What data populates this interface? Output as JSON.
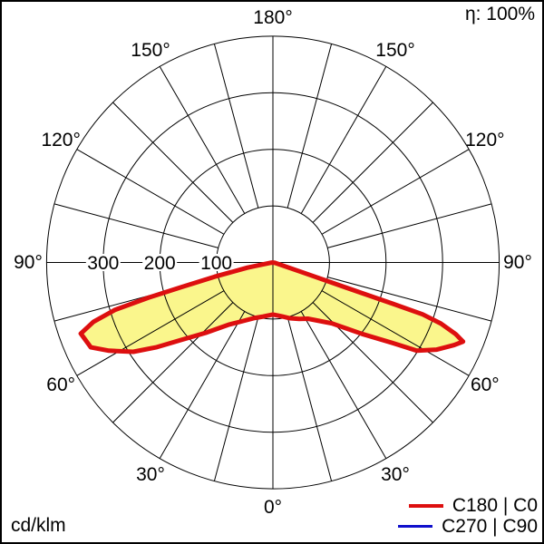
{
  "frame": {
    "eta_label": "η: 100%",
    "unit_label": "cd/klm"
  },
  "legend": {
    "entries": [
      {
        "label": "C180 | C0",
        "color": "#dd0f0f",
        "thickness": 4
      },
      {
        "label": "C270 | C90",
        "color": "#1010cc",
        "thickness": 3
      }
    ]
  },
  "chart_data": {
    "type": "polar",
    "subtype": "luminaire-light-distribution-curve",
    "units": "cd/klm",
    "efficiency": "η: 100%",
    "angle_zero_direction": "down (nadir), angles increase toward horizontal 90° and zenith 180°",
    "angle_tick_step_deg": 15,
    "angle_labels": [
      0,
      30,
      60,
      90,
      120,
      150,
      180
    ],
    "rings": [
      100,
      200,
      300,
      400
    ],
    "ring_axis_labels": [
      100,
      200,
      300
    ],
    "max_value": 400,
    "grid_color": "#000000",
    "curve_color": "#dd0f0f",
    "curve_fill": "#faf68c",
    "series": [
      {
        "name": "C180 | C0",
        "color": "#dd0f0f",
        "points_gamma_cd": [
          [
            -84,
            2
          ],
          [
            -78.5,
            46
          ],
          [
            -76.3,
            106
          ],
          [
            -74.9,
            168
          ],
          [
            -74.2,
            229
          ],
          [
            -73.3,
            292
          ],
          [
            -71.7,
            334
          ],
          [
            -69.7,
            362
          ],
          [
            -65.0,
            355
          ],
          [
            -61.7,
            329
          ],
          [
            -57.4,
            293
          ],
          [
            -53.9,
            254
          ],
          [
            -49.8,
            212
          ],
          [
            -43.7,
            172
          ],
          [
            -35.1,
            134
          ],
          [
            -28.0,
            118
          ],
          [
            -19.0,
            104
          ],
          [
            -10.0,
            97
          ],
          [
            -5.0,
            94
          ],
          [
            0.0,
            92
          ],
          [
            5.0,
            94
          ],
          [
            10.0,
            97
          ],
          [
            16.9,
            103
          ],
          [
            25.0,
            110
          ],
          [
            31.8,
            117
          ],
          [
            37.3,
            129
          ],
          [
            44.1,
            150
          ],
          [
            51.3,
            202
          ],
          [
            56.0,
            254
          ],
          [
            58.5,
            298
          ],
          [
            62.0,
            328
          ],
          [
            65.5,
            352
          ],
          [
            67.4,
            364
          ],
          [
            68.6,
            347
          ],
          [
            70.0,
            316
          ],
          [
            70.9,
            280
          ],
          [
            71.0,
            224
          ],
          [
            71.0,
            167
          ],
          [
            71.1,
            111
          ],
          [
            71.5,
            54
          ],
          [
            80,
            3
          ]
        ]
      },
      {
        "name": "C270 | C90",
        "color": "#1010cc",
        "points_gamma_cd": []
      }
    ]
  }
}
